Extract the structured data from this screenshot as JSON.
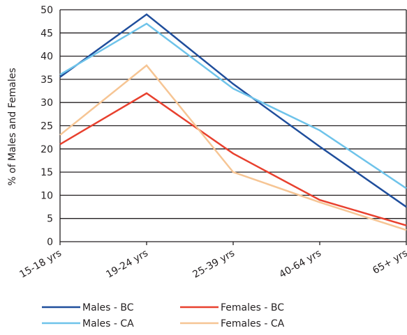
{
  "chart_data": {
    "type": "line",
    "title": "",
    "xlabel": "",
    "ylabel": "% of Males and Females",
    "categories": [
      "15-18 yrs",
      "19-24 yrs",
      "25-39 yrs",
      "40-64 yrs",
      "65+ yrs"
    ],
    "ylim": [
      0,
      50
    ],
    "yticks": [
      0,
      5,
      10,
      15,
      20,
      25,
      30,
      35,
      40,
      45,
      50
    ],
    "grid": "horizontal",
    "legend_position": "bottom",
    "series": [
      {
        "name": "Males - BC",
        "color": "#1f4e9c",
        "values": [
          35.5,
          49,
          34,
          20.5,
          7.5
        ]
      },
      {
        "name": "Males - CA",
        "color": "#6ec3ea",
        "values": [
          36,
          47,
          33,
          24,
          11.5
        ]
      },
      {
        "name": "Females - BC",
        "color": "#e8402e",
        "values": [
          21,
          32,
          19,
          9,
          3.5
        ]
      },
      {
        "name": "Females - CA",
        "color": "#f6c594",
        "values": [
          23,
          38,
          15,
          8.5,
          2.5
        ]
      }
    ]
  }
}
